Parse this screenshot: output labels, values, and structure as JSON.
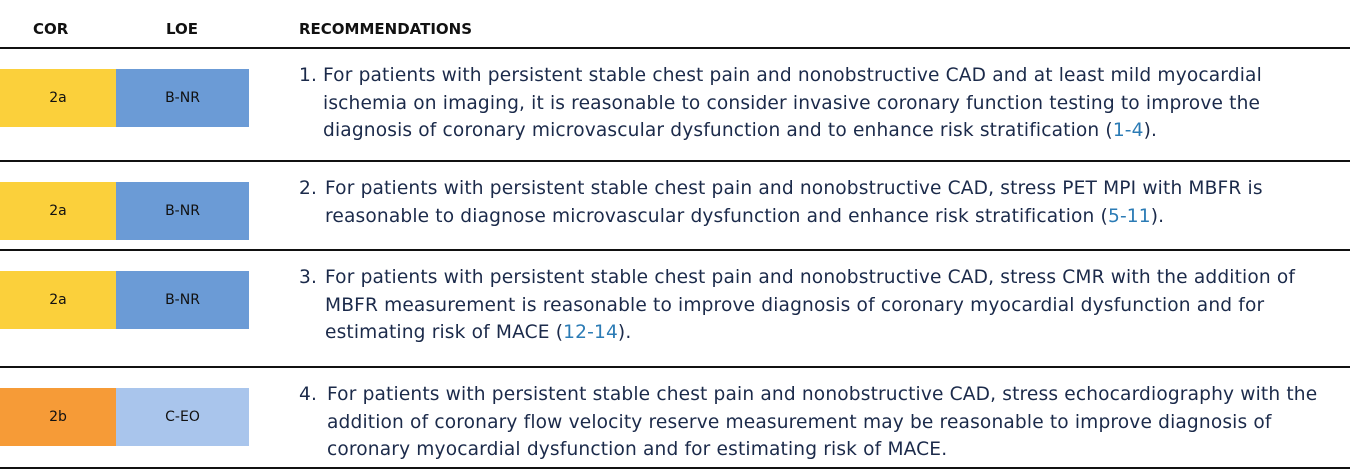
{
  "header": {
    "cor": "COR",
    "loe": "LOE",
    "recommendations": "RECOMMENDATIONS"
  },
  "colors": {
    "cor_2a": "#fbd03b",
    "cor_2b": "#f69b37",
    "loe_bnr": "#6b9bd6",
    "loe_ceo": "#a9c5ec",
    "text": "#1b2a4a",
    "ref": "#2b7bb5"
  },
  "rows": [
    {
      "cor": "2a",
      "loe": "B-NR",
      "number": "1.",
      "text": "For patients with persistent stable chest pain and nonobstructive CAD and at least mild myocardial ischemia on imaging, it is reasonable to consider invasive coronary function testing to improve the diagnosis of coronary microvascular dysfunction and to enhance risk stratification (",
      "ref": "1-4",
      "end": ")."
    },
    {
      "cor": "2a",
      "loe": "B-NR",
      "number": "2.",
      "text": "For patients with persistent stable chest pain and nonobstructive CAD, stress PET MPI with MBFR is reasonable to diagnose microvascular dysfunction and enhance risk stratification (",
      "ref": "5-11",
      "end": ")."
    },
    {
      "cor": "2a",
      "loe": "B-NR",
      "number": "3.",
      "text": "For patients with persistent stable chest pain and nonobstructive CAD, stress CMR with the addition of MBFR measurement is reasonable to improve diagnosis of coronary myocardial dysfunction and for estimating risk of MACE (",
      "ref": "12-14",
      "end": ")."
    },
    {
      "cor": "2b",
      "loe": "C-EO",
      "number": "4.",
      "text": "For patients with persistent stable chest pain and nonobstructive CAD, stress echocardiography with the addition of coronary flow velocity reserve measurement may be reasonable to improve diagnosis of coronary myocardial dysfunction and for estimating risk of MACE.",
      "ref": "",
      "end": ""
    }
  ]
}
